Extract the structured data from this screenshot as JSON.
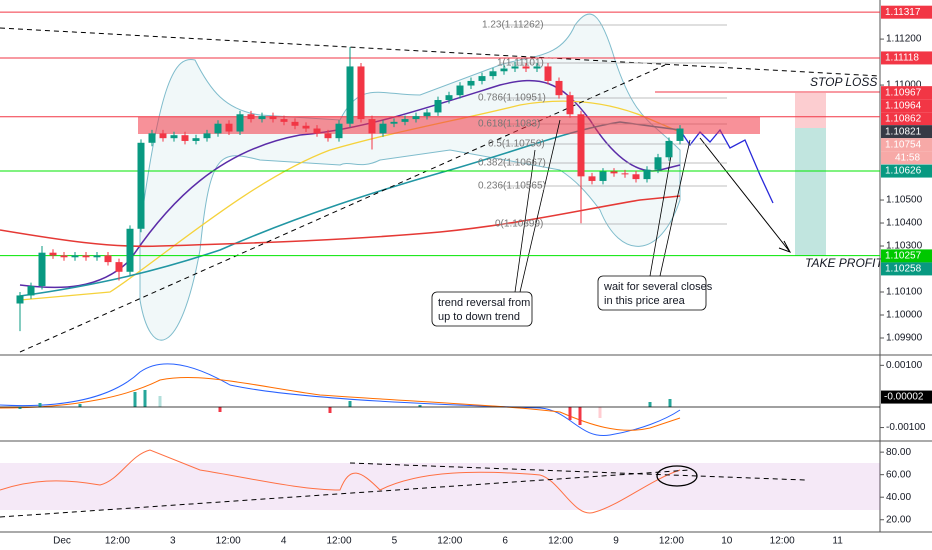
{
  "chart_data": {
    "type": "candlestick",
    "open": [
      1.1005,
      1.10085,
      1.10126,
      1.10271,
      1.10259,
      1.10251,
      1.10259,
      1.10251,
      1.10259,
      1.1023,
      1.10188,
      1.10375,
      1.10749,
      1.1079,
      1.10769,
      1.10782,
      1.10757,
      1.10769,
      1.1079,
      1.10832,
      1.10798,
      1.10873,
      1.10852,
      1.10865,
      1.10852,
      1.1084,
      1.10823,
      1.10811,
      1.1079,
      1.10769,
      1.10832,
      1.11081,
      1.10852,
      1.1079,
      1.10832,
      1.1084,
      1.10852,
      1.10865,
      1.10881,
      1.10935,
      1.10956,
      1.10998,
      1.11018,
      1.11039,
      1.1106,
      1.11072,
      1.11081,
      1.11072,
      1.11081,
      1.11018,
      1.10956,
      1.10873,
      1.10603,
      1.10583,
      1.10624,
      1.10616,
      1.10612,
      1.10591,
      1.10632,
      1.10686,
      1.10757
    ],
    "high": [
      1.101,
      1.10141,
      1.103,
      1.10286,
      1.10274,
      1.10274,
      1.10274,
      1.10274,
      1.10274,
      1.10245,
      1.1039,
      1.10764,
      1.10805,
      1.10805,
      1.10797,
      1.10797,
      1.10784,
      1.10805,
      1.10847,
      1.10847,
      1.10888,
      1.10888,
      1.1088,
      1.1088,
      1.10867,
      1.10855,
      1.10838,
      1.10826,
      1.10805,
      1.10847,
      1.11165,
      1.11096,
      1.10867,
      1.10847,
      1.10855,
      1.10867,
      1.1088,
      1.10896,
      1.1095,
      1.10971,
      1.11013,
      1.11033,
      1.11054,
      1.11075,
      1.11087,
      1.11101,
      1.11096,
      1.11096,
      1.11096,
      1.11033,
      1.10971,
      1.10888,
      1.10618,
      1.10639,
      1.10639,
      1.10631,
      1.10627,
      1.10647,
      1.10701,
      1.10772,
      1.10826
    ],
    "low": [
      1.0993,
      1.1007,
      1.10111,
      1.10244,
      1.10236,
      1.10236,
      1.10236,
      1.10236,
      1.10215,
      1.1015,
      1.10173,
      1.1036,
      1.10734,
      1.10754,
      1.10754,
      1.10742,
      1.10742,
      1.10754,
      1.10775,
      1.10783,
      1.10783,
      1.10837,
      1.10837,
      1.10837,
      1.10825,
      1.10808,
      1.10796,
      1.10775,
      1.10754,
      1.10754,
      1.10817,
      1.10837,
      1.1072,
      1.10775,
      1.10817,
      1.10825,
      1.10837,
      1.1085,
      1.10866,
      1.1092,
      1.10941,
      1.10983,
      1.11003,
      1.11024,
      1.11045,
      1.11057,
      1.11057,
      1.11057,
      1.11003,
      1.10941,
      1.10858,
      1.10399,
      1.10568,
      1.10568,
      1.10601,
      1.10597,
      1.10576,
      1.10576,
      1.10617,
      1.10671,
      1.10742
    ],
    "close": [
      1.10085,
      1.10126,
      1.10271,
      1.10259,
      1.10251,
      1.10259,
      1.10251,
      1.10259,
      1.1023,
      1.10188,
      1.10375,
      1.10749,
      1.1079,
      1.10769,
      1.10782,
      1.10757,
      1.10769,
      1.1079,
      1.10832,
      1.10798,
      1.10873,
      1.10852,
      1.10865,
      1.10852,
      1.1084,
      1.10823,
      1.10811,
      1.1079,
      1.10769,
      1.10832,
      1.11081,
      1.10852,
      1.1079,
      1.10832,
      1.1084,
      1.10852,
      1.10865,
      1.10881,
      1.10935,
      1.10956,
      1.10998,
      1.11018,
      1.11039,
      1.1106,
      1.11072,
      1.11081,
      1.11072,
      1.11081,
      1.11018,
      1.10956,
      1.10873,
      1.10603,
      1.10583,
      1.10624,
      1.10616,
      1.10612,
      1.10591,
      1.10632,
      1.10686,
      1.10757,
      1.10811
    ],
    "up_color": "#089981",
    "down_color": "#f23645",
    "ylim": [
      1.09826,
      1.1137
    ],
    "yticks": [
      {
        "value": 1.112,
        "label": "1.11200"
      },
      {
        "value": 1.11,
        "label": "1.11000"
      },
      {
        "value": 1.105,
        "label": "1.10500"
      },
      {
        "value": 1.104,
        "label": "1.10400"
      },
      {
        "value": 1.103,
        "label": "1.10300"
      },
      {
        "value": 1.101,
        "label": "1.10100"
      },
      {
        "value": 1.1,
        "label": "1.10000"
      },
      {
        "value": 1.099,
        "label": "1.09900"
      }
    ],
    "levels": [
      {
        "value": 1.11317,
        "color": "#f23645"
      },
      {
        "value": 1.11118,
        "color": "#f23645"
      },
      {
        "value": 1.10862,
        "color": "#f23645"
      },
      {
        "value": 1.10626,
        "color": "#00e600"
      },
      {
        "value": 1.10258,
        "color": "#00e600"
      }
    ],
    "price_badges": [
      {
        "value": 1.11317,
        "color": "#f23645"
      },
      {
        "value": 1.11118,
        "color": "#f23645"
      },
      {
        "value": 1.10967,
        "color": "#f23645"
      },
      {
        "value": 1.10964,
        "color": "#f23645"
      },
      {
        "value": 1.10862,
        "color": "#f23645"
      },
      {
        "value": 1.10821,
        "color": "#363a45"
      },
      {
        "value": 1.10754,
        "color": "#f7a9a7"
      },
      {
        "value": 1.10626,
        "color": "#089981"
      },
      {
        "value": 1.10257,
        "color": "#00c800"
      },
      {
        "value": 1.10258,
        "color": "#089981"
      }
    ],
    "countdown": "41:58",
    "fib_labels": [
      "1.23(1.11262)",
      "1(1.11101)",
      "0.786(1.10951)",
      "0.618(1.1083)",
      "0.5(1.10750)",
      "0.382(1.10667)",
      "0.236(1.10565)",
      "0(1.10399)"
    ],
    "stop_loss": "STOP LOSS",
    "take_profit": "TAKE PROFIT",
    "callout_1": [
      "trend reversal from",
      "up to down trend"
    ],
    "callout_2": [
      "wait for several closes",
      "in this price area"
    ],
    "macd_ylim": [
      -0.0014,
      0.0013
    ],
    "macd_yticks": [
      {
        "value": 0.001,
        "label": "0.00100"
      },
      {
        "value": -0.001,
        "label": "-0.00100"
      }
    ],
    "macd_badge": {
      "value": -2e-05,
      "label": "-0.00002"
    },
    "rsi_ylim": [
      10,
      89
    ],
    "rsi_yticks": [
      {
        "value": 80,
        "label": "80.00"
      },
      {
        "value": 60,
        "label": "60.00"
      },
      {
        "value": 40,
        "label": "40.00"
      },
      {
        "value": 20,
        "label": "20.00"
      }
    ],
    "x_labels": [
      "Dec",
      "12:00",
      "3",
      "12:00",
      "4",
      "12:00",
      "5",
      "12:00",
      "6",
      "12:00",
      "9",
      "12:00",
      "10",
      "12:00",
      "11"
    ]
  }
}
